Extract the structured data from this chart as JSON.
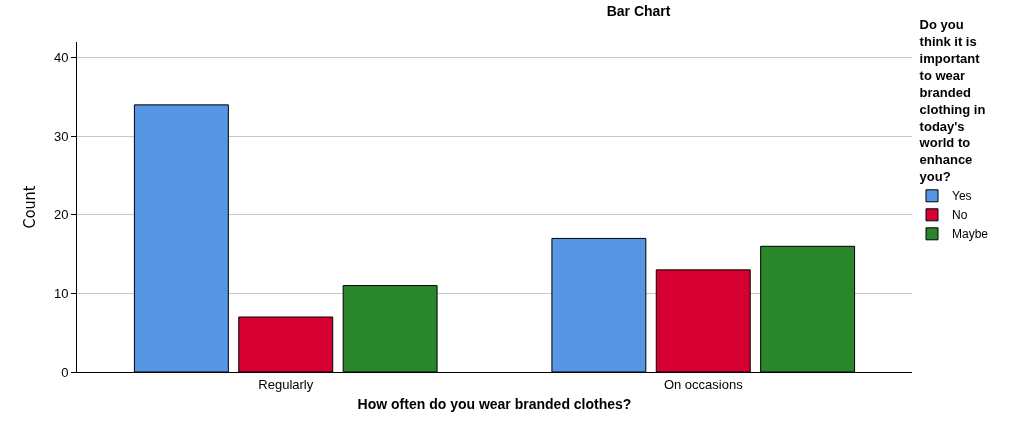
{
  "chart_data": {
    "type": "bar",
    "title": "Bar Chart",
    "xlabel": "How often do you wear branded clothes?",
    "ylabel": "Count",
    "legend_title": "Do you think it is important to wear branded clothing in today's world to enhance you?",
    "categories": [
      "Regularly",
      "On occasions"
    ],
    "series": [
      {
        "name": "Yes",
        "color": "#5795e5",
        "values": [
          34,
          17
        ]
      },
      {
        "name": "No",
        "color": "#d60032",
        "values": [
          7,
          13
        ]
      },
      {
        "name": "Maybe",
        "color": "#2a862b",
        "values": [
          11,
          16
        ]
      }
    ],
    "ylim": [
      0,
      42
    ],
    "yticks": [
      0,
      10,
      20,
      30,
      40
    ],
    "grid": "y",
    "legend": "right"
  }
}
